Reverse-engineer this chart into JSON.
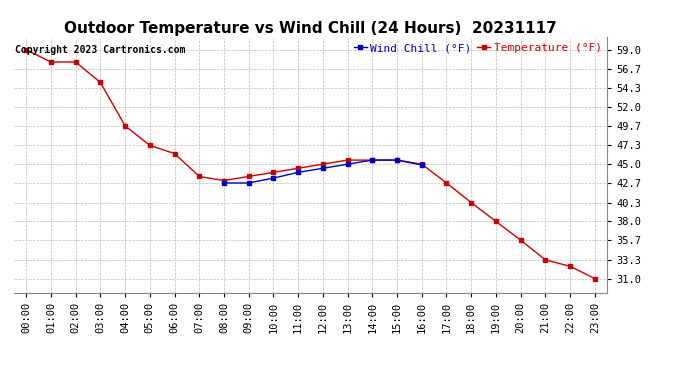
{
  "title": "Outdoor Temperature vs Wind Chill (24 Hours)  20231117",
  "copyright_text": "Copyright 2023 Cartronics.com",
  "legend_wind_chill": "Wind Chill (°F)",
  "legend_temperature": "Temperature (°F)",
  "background_color": "#ffffff",
  "grid_color": "#bbbbbb",
  "temp_color": "#cc0000",
  "wind_color": "#0000cc",
  "temp_hours": [
    0,
    1,
    2,
    3,
    4,
    5,
    6,
    7,
    8,
    9,
    10,
    11,
    12,
    13,
    14,
    15,
    16,
    17,
    18,
    19,
    20,
    21,
    22,
    23
  ],
  "temp_values": [
    59.0,
    57.5,
    57.5,
    55.0,
    49.7,
    47.3,
    46.3,
    43.5,
    43.0,
    43.5,
    44.0,
    44.5,
    45.0,
    45.5,
    45.5,
    45.5,
    45.0,
    42.7,
    40.3,
    38.0,
    35.7,
    33.3,
    32.5,
    31.0
  ],
  "wind_hours": [
    8,
    9,
    10,
    11,
    12,
    13,
    14,
    15,
    16
  ],
  "wind_values": [
    42.7,
    42.7,
    43.3,
    44.0,
    44.5,
    45.0,
    45.5,
    45.5,
    44.9
  ],
  "yticks": [
    31.0,
    33.3,
    35.7,
    38.0,
    40.3,
    42.7,
    45.0,
    47.3,
    49.7,
    52.0,
    54.3,
    56.7,
    59.0
  ],
  "xtick_labels": [
    "00:00",
    "01:00",
    "02:00",
    "03:00",
    "04:00",
    "05:00",
    "06:00",
    "07:00",
    "08:00",
    "09:00",
    "10:00",
    "11:00",
    "12:00",
    "13:00",
    "14:00",
    "15:00",
    "16:00",
    "17:00",
    "18:00",
    "19:00",
    "20:00",
    "21:00",
    "22:00",
    "23:00"
  ],
  "ylim_min": 29.3,
  "ylim_max": 60.5,
  "title_fontsize": 11,
  "axis_fontsize": 7.5,
  "legend_fontsize": 8,
  "copyright_fontsize": 7
}
